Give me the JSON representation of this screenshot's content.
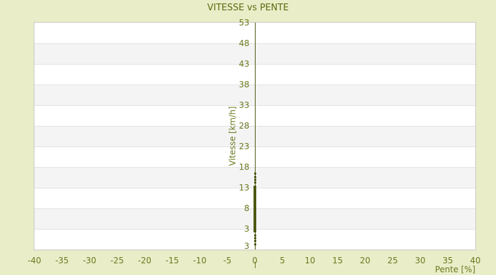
{
  "title": "VITESSE vs PENTE",
  "colors": {
    "background": "#e9edc8",
    "axis_text": "#6b781f",
    "title_text": "#5d6a10",
    "series": "#4d5711",
    "band_gray": "#f4f4f4",
    "gridline": "#e2e2e2",
    "plot_border": "#c9c9c9",
    "plot_background": "#ffffff"
  },
  "chart_data": {
    "type": "scatter",
    "title": "VITESSE vs PENTE",
    "xlabel": "Pente [%]",
    "ylabel": "Vitesse [km/h]",
    "xlim": [
      -40,
      40
    ],
    "ylim": [
      -2,
      53
    ],
    "x_ticks": [
      -40,
      -35,
      -30,
      -25,
      -20,
      -15,
      -10,
      -5,
      0,
      5,
      10,
      15,
      20,
      25,
      30,
      35,
      40
    ],
    "y_ticks": [
      53,
      48,
      43,
      38,
      33,
      28,
      23,
      18,
      13,
      8,
      3
    ],
    "y_axis_bottom_edge_label": "3",
    "grid": "alternating-horizontal-bands",
    "legend": "none",
    "zero_axis_line": {
      "x": 0,
      "color": "#4d5711"
    },
    "series": [
      {
        "name": "vitesse-points",
        "marker": "square",
        "color": "#4d5711",
        "dense_cluster": {
          "x": 0,
          "y_from": 2.2,
          "y_to": 13.5
        },
        "outlier_points": [
          [
            0,
            16.5
          ],
          [
            0,
            15.7
          ],
          [
            0,
            15.0
          ],
          [
            0,
            14.3
          ],
          [
            0,
            1.5
          ],
          [
            0,
            0.8
          ],
          [
            0,
            0.2
          ],
          [
            0,
            -0.7
          ]
        ]
      }
    ]
  }
}
